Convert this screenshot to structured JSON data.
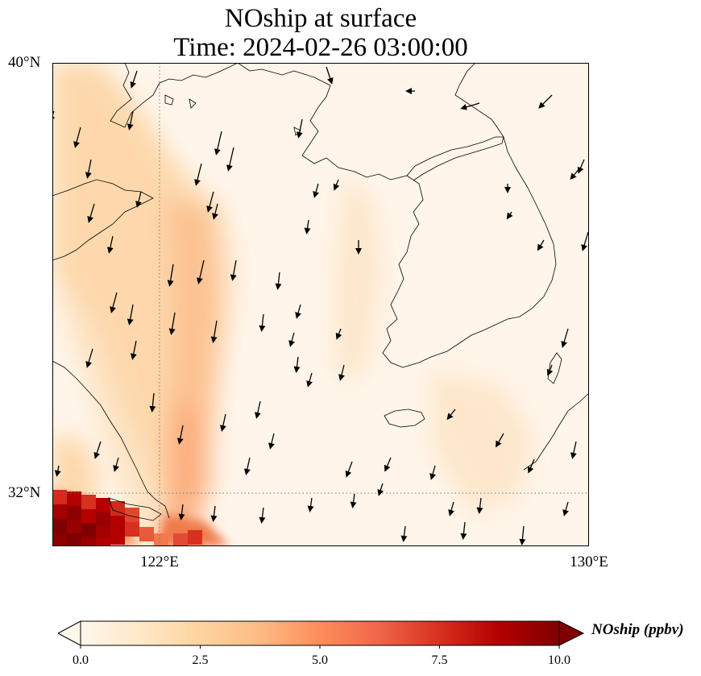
{
  "title": {
    "line1": "NOship at surface",
    "line2": "Time: 2024-02-26 03:00:00"
  },
  "map": {
    "extent": {
      "lon_min": 119,
      "lon_max": 130,
      "lat_min": 30.9,
      "lat_max": 40
    },
    "lat_ticks": [
      {
        "value": 40,
        "label": "40°N"
      },
      {
        "value": 32,
        "label": "32°N"
      }
    ],
    "lon_ticks": [
      {
        "value": 122,
        "label": "122°E"
      },
      {
        "value": 130,
        "label": "130°E"
      }
    ],
    "gridlines": {
      "lon": 122,
      "lat": 32,
      "style": "dotted"
    },
    "wind_direction": "north to south-southwest",
    "colors": {
      "frame": "#000000",
      "coast": "#000000",
      "grid": "#777777",
      "arrow": "#000000"
    }
  },
  "colorbar": {
    "label": "NOship (ppbv)",
    "ticks": [
      "0.0",
      "2.5",
      "5.0",
      "7.5",
      "10.0"
    ],
    "min": 0,
    "max": 10,
    "extend": "both",
    "colormap": "OrRd",
    "stops": [
      "#fff7ec",
      "#fee8c8",
      "#fdd49e",
      "#fdbb84",
      "#fc8d59",
      "#ef6548",
      "#d7301f",
      "#b30000",
      "#7f0000"
    ]
  }
}
